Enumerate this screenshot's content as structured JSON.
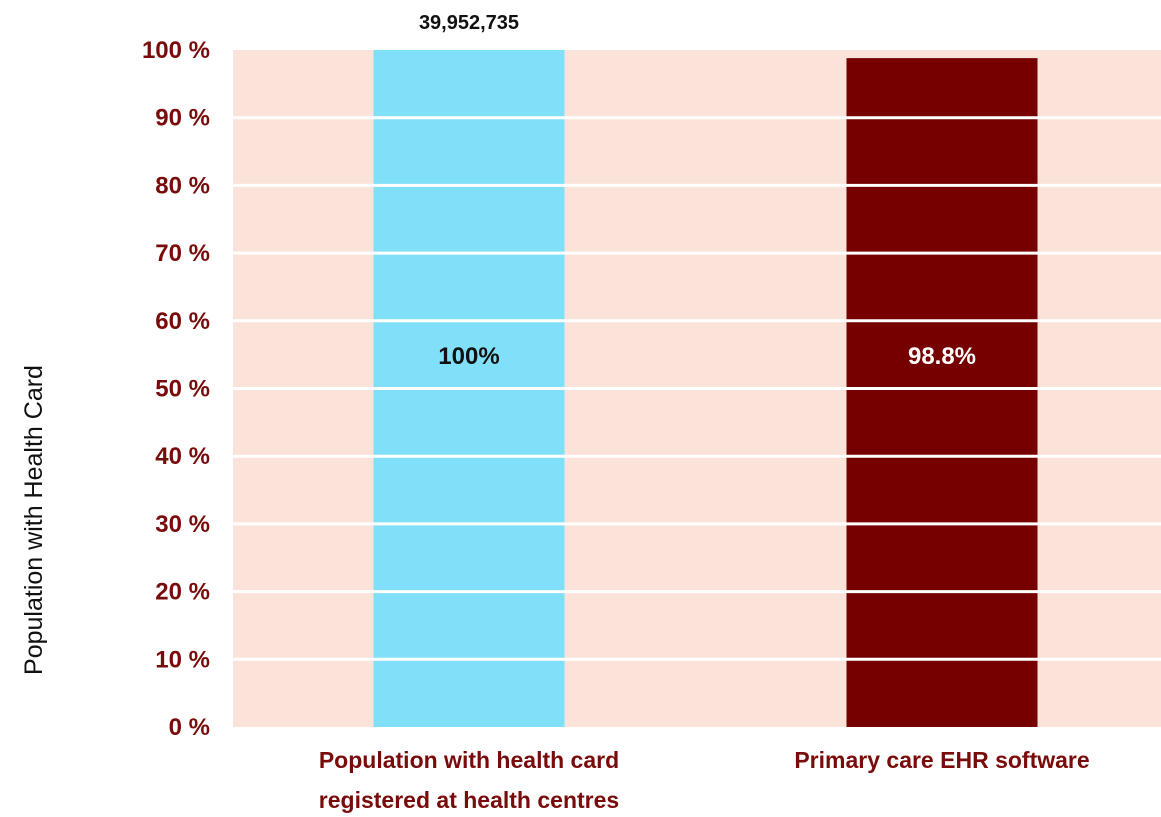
{
  "chart_data": {
    "type": "bar",
    "title": "",
    "xlabel": "",
    "ylabel": "Population with Health Card",
    "ylim": [
      0,
      100
    ],
    "yticks": [
      "0 %",
      "10 %",
      "20 %",
      "30 %",
      "40 %",
      "50 %",
      "60 %",
      "70 %",
      "80 %",
      "90 %",
      "100 %"
    ],
    "grid": true,
    "categories": [
      [
        "Population with health card",
        "registered at health centres"
      ],
      [
        "Primary care EHR software"
      ]
    ],
    "values": [
      100,
      98.8
    ],
    "data_labels": [
      "100%",
      "98.8%"
    ],
    "top_annotation": "39,952,735",
    "colors": {
      "plot_background": "#fbe3d9",
      "gridline": "#ffffff",
      "bars": [
        "#80e0fa",
        "#760000"
      ],
      "data_label_text": [
        "#111111",
        "#ffffff"
      ],
      "tick_text": "#7a0b0b",
      "axis_label_text": "#111111",
      "annotation_text": "#111111"
    }
  }
}
